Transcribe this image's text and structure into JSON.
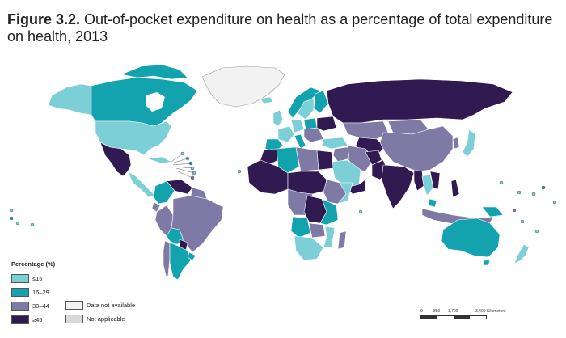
{
  "figure": {
    "label": "Figure 3.2.",
    "title": "Out-of-pocket expenditure on health as a percentage of total expenditure on health, 2013"
  },
  "colors": {
    "le15": "#7ccfd6",
    "r16_29": "#12a3ae",
    "r30_44": "#7f79a6",
    "ge45": "#311a52",
    "not_available": "#f2f2f2",
    "not_applicable": "#d9d9d9",
    "ocean": "#ffffff",
    "border": "#ffffff"
  },
  "legend": {
    "title": "Percentage (%)",
    "items": [
      {
        "label": "≤15",
        "color_key": "le15"
      },
      {
        "label": "16–29",
        "color_key": "r16_29"
      },
      {
        "label": "30–44",
        "color_key": "r30_44"
      },
      {
        "label": "≥45",
        "color_key": "ge45"
      }
    ],
    "extra": [
      {
        "label": "Data not available",
        "color_key": "not_available"
      },
      {
        "label": "Not applicable",
        "color_key": "not_applicable"
      }
    ]
  },
  "scale": {
    "ticks": [
      "0",
      "850",
      "1,700",
      "3,400 Kilometers"
    ]
  }
}
